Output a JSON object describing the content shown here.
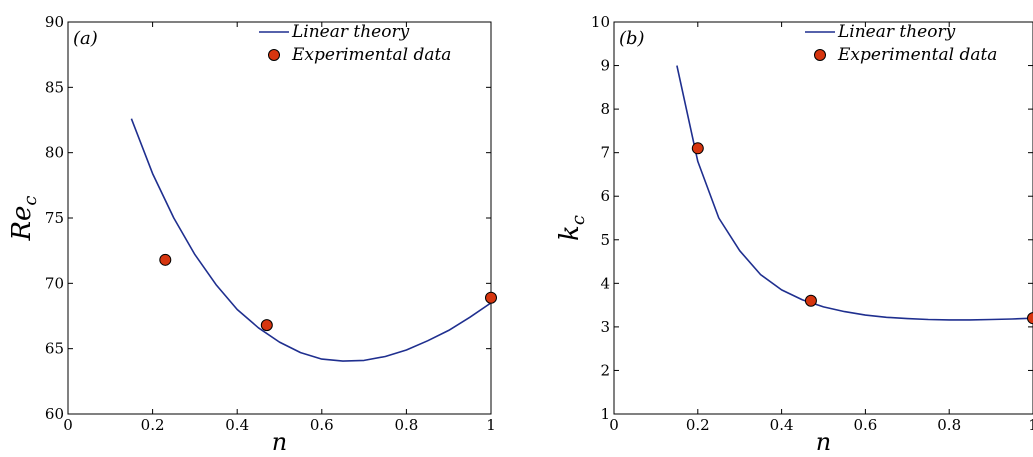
{
  "colors": {
    "line": "#1f2f8f",
    "marker_fill": "#d6350f",
    "marker_stroke": "#000000"
  },
  "chart_data": [
    {
      "type": "line",
      "panel_label": "(a)",
      "xlabel": "n",
      "ylabel_main": "Re",
      "ylabel_sub": "c",
      "xlim": [
        0,
        1
      ],
      "ylim": [
        60,
        90
      ],
      "xticks": [
        0,
        0.2,
        0.4,
        0.6,
        0.8,
        1
      ],
      "xtick_labels": [
        "0",
        "0.2",
        "0.4",
        "0.6",
        "0.8",
        "1"
      ],
      "yticks": [
        60,
        65,
        70,
        75,
        80,
        85,
        90
      ],
      "ytick_labels": [
        "60",
        "65",
        "70",
        "75",
        "80",
        "85",
        "90"
      ],
      "legend": [
        "Linear theory",
        "Experimental data"
      ],
      "legend_position": "top-right",
      "grid": false,
      "series": [
        {
          "name": "Linear theory",
          "kind": "line",
          "x": [
            0.15,
            0.2,
            0.25,
            0.3,
            0.35,
            0.4,
            0.45,
            0.5,
            0.55,
            0.6,
            0.65,
            0.7,
            0.75,
            0.8,
            0.85,
            0.9,
            0.95,
            1.0
          ],
          "y": [
            82.6,
            78.4,
            75.0,
            72.2,
            69.9,
            68.0,
            66.6,
            65.5,
            64.7,
            64.2,
            64.05,
            64.1,
            64.4,
            64.9,
            65.6,
            66.4,
            67.4,
            68.5
          ]
        },
        {
          "name": "Experimental data",
          "kind": "scatter",
          "x": [
            0.23,
            0.47,
            1.0
          ],
          "y": [
            71.8,
            66.8,
            68.9
          ]
        }
      ]
    },
    {
      "type": "line",
      "panel_label": "(b)",
      "xlabel": "n",
      "ylabel_main": "k",
      "ylabel_sub": "c",
      "xlim": [
        0,
        1
      ],
      "ylim": [
        1,
        10
      ],
      "xticks": [
        0,
        0.2,
        0.4,
        0.6,
        0.8,
        1
      ],
      "xtick_labels": [
        "0",
        "0.2",
        "0.4",
        "0.6",
        "0.8",
        "1"
      ],
      "yticks": [
        1,
        2,
        3,
        4,
        5,
        6,
        7,
        8,
        9,
        10
      ],
      "ytick_labels": [
        "1",
        "2",
        "3",
        "4",
        "5",
        "6",
        "7",
        "8",
        "9",
        "10"
      ],
      "legend": [
        "Linear theory",
        "Experimental data"
      ],
      "legend_position": "top-right",
      "grid": false,
      "series": [
        {
          "name": "Linear theory",
          "kind": "line",
          "x": [
            0.15,
            0.2,
            0.25,
            0.3,
            0.35,
            0.4,
            0.45,
            0.5,
            0.55,
            0.6,
            0.65,
            0.7,
            0.75,
            0.8,
            0.85,
            0.9,
            0.95,
            1.0
          ],
          "y": [
            9.0,
            6.8,
            5.5,
            4.75,
            4.2,
            3.85,
            3.62,
            3.46,
            3.35,
            3.27,
            3.22,
            3.19,
            3.17,
            3.16,
            3.16,
            3.17,
            3.18,
            3.2
          ]
        },
        {
          "name": "Experimental data",
          "kind": "scatter",
          "x": [
            0.2,
            0.47,
            1.0
          ],
          "y": [
            7.1,
            3.6,
            3.2
          ]
        }
      ]
    }
  ]
}
